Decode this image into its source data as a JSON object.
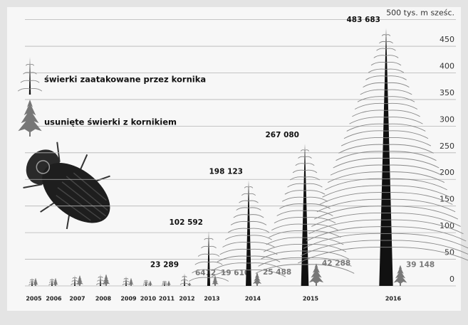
{
  "chart_data": {
    "type": "tree-infographic",
    "categories": [
      "2005",
      "2006",
      "2007",
      "2008",
      "2009",
      "2010",
      "2011",
      "2012",
      "2013",
      "2014",
      "2015",
      "2016"
    ],
    "series": [
      {
        "name": "świerki zaatakowane przez kornika",
        "color": "#111111",
        "values": [
          15,
          15,
          20,
          22,
          18,
          12,
          10,
          23.289,
          102.592,
          198.123,
          267.08,
          483.683
        ],
        "value_labels": [
          null,
          null,
          null,
          null,
          null,
          null,
          null,
          "23 289",
          "102 592",
          "198 123",
          "267 080",
          "483 683"
        ]
      },
      {
        "name": "usunięte świerki z kornikiem",
        "color": "#777777",
        "values": [
          15,
          15,
          20,
          22,
          15,
          10,
          10,
          6.412,
          19.61,
          25.488,
          42.288,
          39.148
        ],
        "value_labels": [
          null,
          null,
          null,
          null,
          null,
          null,
          null,
          "6412",
          "19 610",
          "25 488",
          "42 288",
          "39 148"
        ]
      }
    ],
    "ylim": [
      0,
      500
    ],
    "yticks": [
      0,
      50,
      100,
      150,
      200,
      250,
      300,
      350,
      400,
      450,
      {
        "value": 500,
        "label": "500 tys. m sześc."
      }
    ],
    "grid": true
  }
}
